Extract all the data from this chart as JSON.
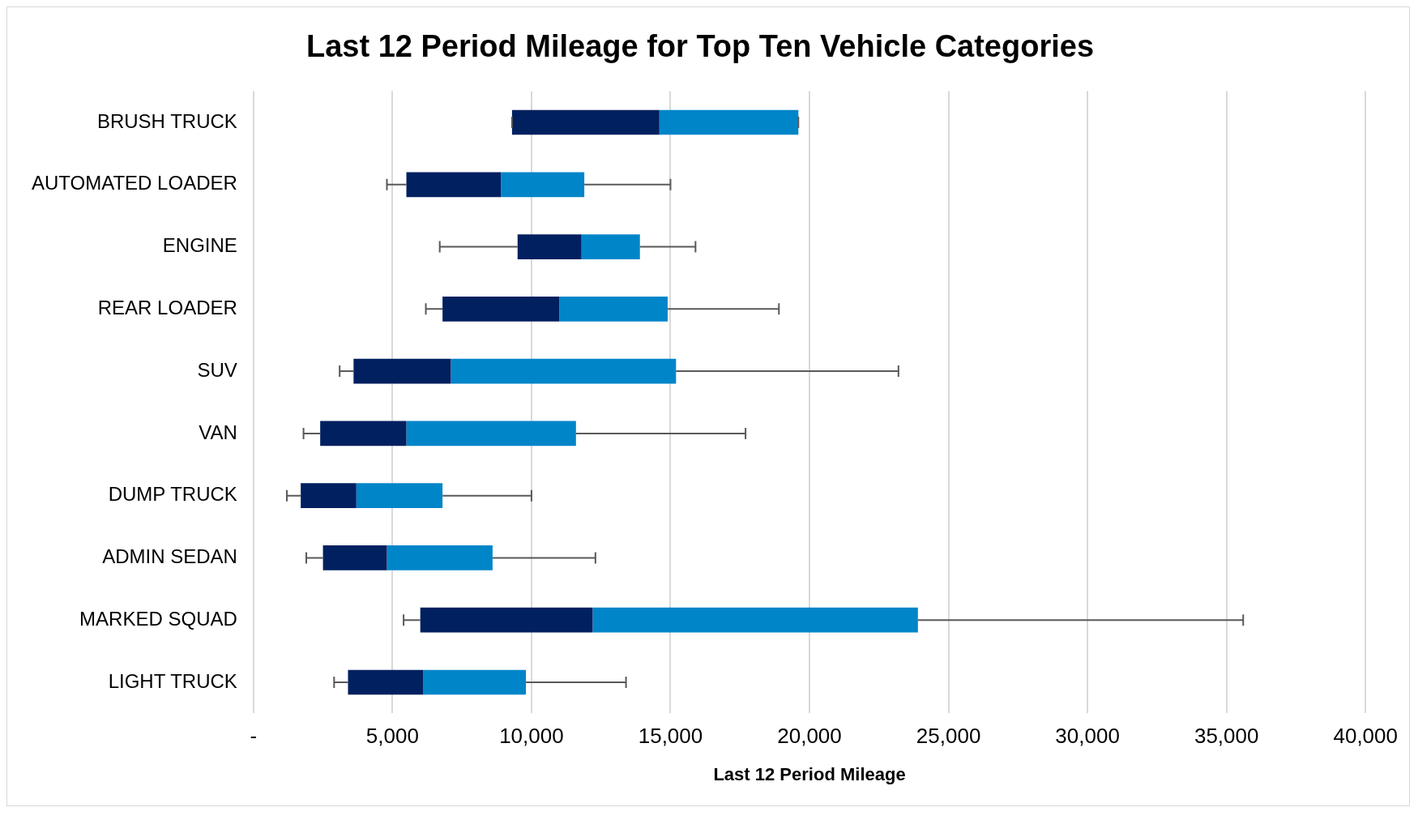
{
  "chart_data": {
    "type": "box",
    "orientation": "horizontal",
    "title": "Last 12 Period Mileage for Top Ten Vehicle Categories",
    "xlabel": "Last 12 Period Mileage",
    "categories": [
      "BRUSH TRUCK",
      "AUTOMATED LOADER",
      "ENGINE",
      "REAR LOADER",
      "SUV",
      "VAN",
      "DUMP TRUCK",
      "ADMIN SEDAN",
      "MARKED SQUAD",
      "LIGHT TRUCK"
    ],
    "colors": [
      [
        "#002060",
        "#0085c9"
      ],
      [
        "#002060",
        "#0085c9"
      ],
      [
        "#002060",
        "#0085c9"
      ],
      [
        "#002060",
        "#0085c9"
      ],
      [
        "#002060",
        "#0085c9"
      ],
      [
        "#002060",
        "#0085c9"
      ],
      [
        "#002060",
        "#0085c9"
      ],
      [
        "#002060",
        "#0085c9"
      ],
      [
        "#002060",
        "#0085c9"
      ],
      [
        "#002060",
        "#0085c9"
      ]
    ],
    "boxes": [
      {
        "low": 9300,
        "q1": 9300,
        "median": 14600,
        "q3": 19600,
        "high": 19600
      },
      {
        "low": 4800,
        "q1": 5500,
        "median": 8900,
        "q3": 11900,
        "high": 15000
      },
      {
        "low": 6700,
        "q1": 9500,
        "median": 11800,
        "q3": 13900,
        "high": 15900
      },
      {
        "low": 6200,
        "q1": 6800,
        "median": 11000,
        "q3": 14900,
        "high": 18900
      },
      {
        "low": 3100,
        "q1": 3600,
        "median": 7100,
        "q3": 15200,
        "high": 23200
      },
      {
        "low": 1800,
        "q1": 2400,
        "median": 5500,
        "q3": 11600,
        "high": 17700
      },
      {
        "low": 1200,
        "q1": 1700,
        "median": 3700,
        "q3": 6800,
        "high": 10000
      },
      {
        "low": 1900,
        "q1": 2500,
        "median": 4800,
        "q3": 8600,
        "high": 12300
      },
      {
        "low": 5400,
        "q1": 6000,
        "median": 12200,
        "q3": 23900,
        "high": 35600
      },
      {
        "low": 2900,
        "q1": 3400,
        "median": 6100,
        "q3": 9800,
        "high": 13400
      }
    ],
    "xlim": [
      0,
      40000
    ],
    "xticks": [
      {
        "value": 0,
        "label": "-"
      },
      {
        "value": 5000,
        "label": "5,000"
      },
      {
        "value": 10000,
        "label": "10,000"
      },
      {
        "value": 15000,
        "label": "15,000"
      },
      {
        "value": 20000,
        "label": "20,000"
      },
      {
        "value": 25000,
        "label": "25,000"
      },
      {
        "value": 30000,
        "label": "30,000"
      },
      {
        "value": 35000,
        "label": "35,000"
      },
      {
        "value": 40000,
        "label": "40,000"
      }
    ],
    "grid": "x"
  }
}
